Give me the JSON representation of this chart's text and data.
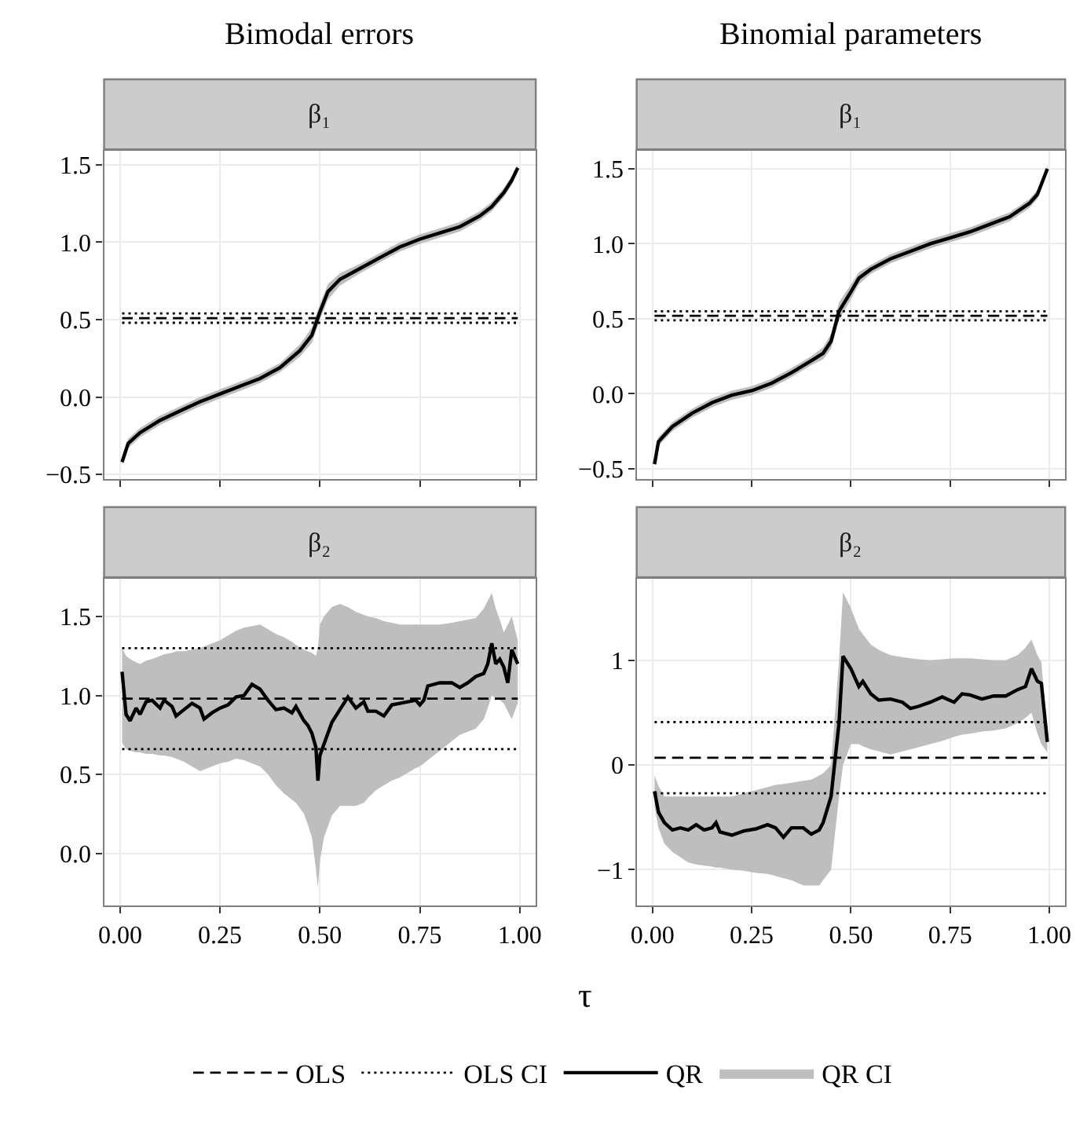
{
  "chart_data": [
    {
      "type": "line",
      "title": "Bimodal errors",
      "subtitle": "β₁",
      "xlim": [
        -0.04,
        1.04
      ],
      "xticks": [
        {
          "value": 0,
          "label": null
        },
        {
          "value": 0.25,
          "label": null
        },
        {
          "value": 0.5,
          "label": null
        },
        {
          "value": 0.75,
          "label": null
        },
        {
          "value": 1,
          "label": null
        }
      ],
      "ylim": [
        -0.53,
        1.59
      ],
      "yticks": [
        {
          "value": -0.5,
          "label": "−0.5"
        },
        {
          "value": 0,
          "label": "0.0"
        },
        0.5,
        {
          "value": 1,
          "label": "1.0"
        },
        1.5
      ],
      "grid": true,
      "tick_labels": "y",
      "legend": "bottom",
      "series": [
        {
          "name": "OLS",
          "color": "#000000",
          "line_style": "dashed",
          "x": [
            0.005,
            0.995
          ],
          "values": [
            0.51,
            0.51
          ]
        },
        {
          "name": "OLS CI",
          "color": "#000000",
          "line_style": "dotted",
          "x": [
            0.005,
            0.995
          ],
          "values": [
            0.48,
            0.48
          ]
        },
        {
          "color": "#000000",
          "line_style": "dotted",
          "x": [
            0.005,
            0.995
          ],
          "values": [
            0.54,
            0.54
          ]
        },
        {
          "name": "QR",
          "color": "#000000",
          "line_style": "solid",
          "x": [
            0.005,
            0.02,
            0.05,
            0.1,
            0.15,
            0.2,
            0.25,
            0.3,
            0.35,
            0.4,
            0.45,
            0.48,
            0.5,
            0.52,
            0.55,
            0.6,
            0.65,
            0.7,
            0.75,
            0.8,
            0.85,
            0.9,
            0.93,
            0.96,
            0.98,
            0.995
          ],
          "values": [
            -0.42,
            -0.3,
            -0.23,
            -0.15,
            -0.09,
            -0.03,
            0.02,
            0.07,
            0.12,
            0.19,
            0.3,
            0.4,
            0.55,
            0.68,
            0.76,
            0.83,
            0.9,
            0.97,
            1.02,
            1.06,
            1.1,
            1.17,
            1.23,
            1.32,
            1.4,
            1.48
          ],
          "lower": [
            -0.44,
            -0.33,
            -0.26,
            -0.18,
            -0.12,
            -0.06,
            -0.01,
            0.04,
            0.09,
            0.16,
            0.26,
            0.35,
            0.5,
            0.63,
            0.72,
            0.8,
            0.87,
            0.94,
            0.99,
            1.03,
            1.07,
            1.14,
            1.2,
            1.29,
            1.37,
            1.46
          ],
          "upper": [
            -0.4,
            -0.27,
            -0.2,
            -0.12,
            -0.06,
            0.0,
            0.05,
            0.1,
            0.15,
            0.22,
            0.34,
            0.45,
            0.6,
            0.73,
            0.8,
            0.86,
            0.93,
            1.0,
            1.05,
            1.09,
            1.13,
            1.2,
            1.26,
            1.35,
            1.43,
            1.5
          ]
        },
        {
          "name": "QR CI",
          "type": "area",
          "color": "#bebebe"
        }
      ]
    },
    {
      "type": "line",
      "title": "Binomial parameters",
      "subtitle": "β₁",
      "xlim": [
        -0.04,
        1.04
      ],
      "xticks": [
        {
          "value": 0,
          "label": null
        },
        {
          "value": 0.25,
          "label": null
        },
        {
          "value": 0.5,
          "label": null
        },
        {
          "value": 0.75,
          "label": null
        },
        {
          "value": 1,
          "label": null
        }
      ],
      "ylim": [
        -0.57,
        1.62
      ],
      "yticks": [
        {
          "value": -0.5,
          "label": "−0.5"
        },
        {
          "value": 0,
          "label": "0.0"
        },
        0.5,
        {
          "value": 1,
          "label": "1.0"
        },
        1.5
      ],
      "grid": true,
      "tick_labels": "y",
      "series": [
        {
          "name": "OLS",
          "color": "#000000",
          "line_style": "dashed",
          "x": [
            0.005,
            0.995
          ],
          "values": [
            0.52,
            0.52
          ]
        },
        {
          "name": "OLS CI",
          "color": "#000000",
          "line_style": "dotted",
          "x": [
            0.005,
            0.995
          ],
          "values": [
            0.49,
            0.49
          ]
        },
        {
          "color": "#000000",
          "line_style": "dotted",
          "x": [
            0.005,
            0.995
          ],
          "values": [
            0.55,
            0.55
          ]
        },
        {
          "name": "QR",
          "color": "#000000",
          "line_style": "solid",
          "x": [
            0.005,
            0.015,
            0.05,
            0.1,
            0.15,
            0.2,
            0.25,
            0.3,
            0.35,
            0.4,
            0.43,
            0.45,
            0.47,
            0.5,
            0.52,
            0.55,
            0.6,
            0.65,
            0.7,
            0.75,
            0.8,
            0.85,
            0.9,
            0.95,
            0.97,
            0.995
          ],
          "values": [
            -0.47,
            -0.32,
            -0.22,
            -0.13,
            -0.06,
            -0.01,
            0.02,
            0.07,
            0.14,
            0.22,
            0.27,
            0.35,
            0.55,
            0.68,
            0.77,
            0.83,
            0.9,
            0.95,
            1.0,
            1.04,
            1.08,
            1.13,
            1.18,
            1.27,
            1.33,
            1.5
          ],
          "lower": [
            -0.49,
            -0.35,
            -0.25,
            -0.16,
            -0.09,
            -0.04,
            -0.01,
            0.04,
            0.11,
            0.19,
            0.23,
            0.3,
            0.49,
            0.63,
            0.73,
            0.8,
            0.87,
            0.92,
            0.97,
            1.01,
            1.05,
            1.1,
            1.15,
            1.24,
            1.3,
            1.48
          ],
          "upper": [
            -0.45,
            -0.29,
            -0.19,
            -0.1,
            -0.03,
            0.02,
            0.05,
            0.1,
            0.17,
            0.25,
            0.31,
            0.4,
            0.61,
            0.73,
            0.81,
            0.86,
            0.93,
            0.98,
            1.03,
            1.07,
            1.11,
            1.16,
            1.21,
            1.3,
            1.36,
            1.52
          ]
        },
        {
          "type": "area",
          "color": "#bebebe"
        }
      ]
    },
    {
      "type": "line",
      "subtitle": "β₂",
      "xlabel": "τ",
      "xlim": [
        -0.04,
        1.04
      ],
      "xticks": [
        {
          "value": 0,
          "label": "0.00"
        },
        {
          "value": 0.25,
          "label": "0.25"
        },
        {
          "value": 0.5,
          "label": "0.50"
        },
        {
          "value": 0.75,
          "label": "0.75"
        },
        {
          "value": 1,
          "label": "1.00"
        }
      ],
      "ylim": [
        -0.33,
        1.74
      ],
      "yticks": [
        {
          "value": 0,
          "label": "0.0"
        },
        0.5,
        {
          "value": 1,
          "label": "1.0"
        },
        1.5
      ],
      "grid": true,
      "series": [
        {
          "name": "OLS",
          "color": "#000000",
          "line_style": "dashed",
          "x": [
            0.005,
            0.995
          ],
          "values": [
            0.98,
            0.98
          ]
        },
        {
          "name": "OLS CI",
          "color": "#000000",
          "line_style": "dotted",
          "x": [
            0.005,
            0.995
          ],
          "values": [
            0.66,
            0.66
          ]
        },
        {
          "color": "#000000",
          "line_style": "dotted",
          "x": [
            0.005,
            0.995
          ],
          "values": [
            1.3,
            1.3
          ]
        },
        {
          "name": "QR",
          "color": "#000000",
          "line_style": "solid",
          "x": [
            0.005,
            0.015,
            0.025,
            0.04,
            0.05,
            0.065,
            0.08,
            0.1,
            0.11,
            0.13,
            0.14,
            0.16,
            0.18,
            0.2,
            0.21,
            0.23,
            0.25,
            0.27,
            0.29,
            0.31,
            0.33,
            0.35,
            0.37,
            0.39,
            0.41,
            0.43,
            0.44,
            0.46,
            0.47,
            0.48,
            0.49,
            0.495,
            0.5,
            0.51,
            0.53,
            0.55,
            0.57,
            0.59,
            0.61,
            0.62,
            0.64,
            0.66,
            0.68,
            0.7,
            0.72,
            0.74,
            0.75,
            0.76,
            0.77,
            0.8,
            0.83,
            0.85,
            0.87,
            0.89,
            0.91,
            0.92,
            0.93,
            0.94,
            0.95,
            0.96,
            0.97,
            0.98,
            0.995
          ],
          "values": [
            1.15,
            0.88,
            0.84,
            0.92,
            0.88,
            0.96,
            0.97,
            0.92,
            0.97,
            0.93,
            0.87,
            0.91,
            0.95,
            0.92,
            0.85,
            0.89,
            0.92,
            0.94,
            0.99,
            1.0,
            1.07,
            1.04,
            0.97,
            0.91,
            0.92,
            0.89,
            0.93,
            0.84,
            0.81,
            0.76,
            0.67,
            0.46,
            0.62,
            0.69,
            0.83,
            0.91,
            0.99,
            0.92,
            0.96,
            0.9,
            0.9,
            0.87,
            0.94,
            0.95,
            0.96,
            0.97,
            0.94,
            0.97,
            1.06,
            1.08,
            1.08,
            1.05,
            1.08,
            1.12,
            1.14,
            1.2,
            1.33,
            1.2,
            1.23,
            1.18,
            1.08,
            1.29,
            1.2
          ],
          "lower": [
            0.7,
            0.66,
            0.65,
            0.64,
            0.64,
            0.63,
            0.63,
            0.62,
            0.62,
            0.61,
            0.6,
            0.58,
            0.55,
            0.52,
            0.53,
            0.55,
            0.57,
            0.58,
            0.6,
            0.59,
            0.57,
            0.55,
            0.5,
            0.43,
            0.38,
            0.34,
            0.32,
            0.25,
            0.18,
            0.1,
            -0.1,
            -0.22,
            -0.05,
            0.1,
            0.24,
            0.3,
            0.3,
            0.3,
            0.32,
            0.35,
            0.4,
            0.43,
            0.46,
            0.48,
            0.51,
            0.54,
            0.55,
            0.57,
            0.59,
            0.65,
            0.71,
            0.75,
            0.77,
            0.79,
            0.85,
            0.92,
            1.0,
            0.98,
            0.97,
            0.95,
            0.9,
            0.85,
            0.95
          ],
          "upper": [
            1.3,
            1.25,
            1.23,
            1.21,
            1.2,
            1.22,
            1.23,
            1.25,
            1.26,
            1.27,
            1.28,
            1.28,
            1.29,
            1.3,
            1.31,
            1.33,
            1.35,
            1.38,
            1.41,
            1.43,
            1.44,
            1.45,
            1.42,
            1.39,
            1.37,
            1.34,
            1.32,
            1.29,
            1.28,
            1.27,
            1.25,
            1.3,
            1.45,
            1.5,
            1.56,
            1.58,
            1.56,
            1.53,
            1.51,
            1.5,
            1.49,
            1.47,
            1.46,
            1.45,
            1.45,
            1.45,
            1.45,
            1.45,
            1.45,
            1.45,
            1.46,
            1.47,
            1.48,
            1.49,
            1.55,
            1.6,
            1.65,
            1.55,
            1.48,
            1.4,
            1.45,
            1.5,
            1.35
          ]
        },
        {
          "type": "area",
          "color": "#bebebe"
        }
      ]
    },
    {
      "type": "line",
      "subtitle": "β₂",
      "xlim": [
        -0.04,
        1.04
      ],
      "xticks": [
        {
          "value": 0,
          "label": "0.00"
        },
        {
          "value": 0.25,
          "label": "0.25"
        },
        {
          "value": 0.5,
          "label": "0.50"
        },
        {
          "value": 0.75,
          "label": "0.75"
        },
        {
          "value": 1,
          "label": "1.00"
        }
      ],
      "ylim": [
        -1.34,
        1.78
      ],
      "yticks": [
        {
          "value": -1,
          "label": "−1"
        },
        0,
        1
      ],
      "grid": true,
      "series": [
        {
          "name": "OLS",
          "color": "#000000",
          "line_style": "dashed",
          "x": [
            0.005,
            0.995
          ],
          "values": [
            0.07,
            0.07
          ]
        },
        {
          "name": "OLS CI",
          "color": "#000000",
          "line_style": "dotted",
          "x": [
            0.005,
            0.995
          ],
          "values": [
            -0.27,
            -0.27
          ]
        },
        {
          "color": "#000000",
          "line_style": "dotted",
          "x": [
            0.005,
            0.995
          ],
          "values": [
            0.41,
            0.41
          ]
        },
        {
          "name": "QR",
          "color": "#000000",
          "line_style": "solid",
          "x": [
            0.005,
            0.015,
            0.03,
            0.05,
            0.07,
            0.09,
            0.11,
            0.13,
            0.15,
            0.16,
            0.17,
            0.2,
            0.23,
            0.26,
            0.29,
            0.31,
            0.33,
            0.35,
            0.38,
            0.4,
            0.42,
            0.43,
            0.45,
            0.47,
            0.48,
            0.5,
            0.52,
            0.53,
            0.55,
            0.57,
            0.6,
            0.63,
            0.65,
            0.67,
            0.7,
            0.73,
            0.76,
            0.78,
            0.8,
            0.83,
            0.86,
            0.89,
            0.92,
            0.94,
            0.955,
            0.97,
            0.98,
            0.995
          ],
          "values": [
            -0.25,
            -0.45,
            -0.55,
            -0.62,
            -0.6,
            -0.62,
            -0.57,
            -0.62,
            -0.6,
            -0.55,
            -0.64,
            -0.67,
            -0.63,
            -0.61,
            -0.57,
            -0.6,
            -0.69,
            -0.6,
            -0.6,
            -0.66,
            -0.62,
            -0.55,
            -0.3,
            0.4,
            1.04,
            0.92,
            0.75,
            0.8,
            0.68,
            0.62,
            0.63,
            0.6,
            0.54,
            0.56,
            0.6,
            0.65,
            0.6,
            0.68,
            0.67,
            0.63,
            0.66,
            0.66,
            0.72,
            0.75,
            0.92,
            0.8,
            0.78,
            0.22
          ],
          "lower": [
            -0.4,
            -0.6,
            -0.75,
            -0.83,
            -0.88,
            -0.93,
            -0.95,
            -0.96,
            -0.97,
            -0.98,
            -0.98,
            -1.0,
            -1.01,
            -1.03,
            -1.04,
            -1.06,
            -1.08,
            -1.1,
            -1.15,
            -1.15,
            -1.15,
            -1.1,
            -1.0,
            -0.3,
            0.0,
            0.2,
            0.2,
            0.18,
            0.15,
            0.13,
            0.1,
            0.13,
            0.15,
            0.17,
            0.2,
            0.23,
            0.27,
            0.29,
            0.3,
            0.32,
            0.33,
            0.35,
            0.4,
            0.45,
            0.5,
            0.3,
            0.2,
            0.12
          ],
          "upper": [
            -0.1,
            -0.2,
            -0.3,
            -0.3,
            -0.3,
            -0.3,
            -0.3,
            -0.3,
            -0.3,
            -0.3,
            -0.3,
            -0.3,
            -0.27,
            -0.24,
            -0.21,
            -0.19,
            -0.18,
            -0.17,
            -0.15,
            -0.14,
            -0.1,
            -0.08,
            0.0,
            1.0,
            1.65,
            1.5,
            1.3,
            1.25,
            1.15,
            1.1,
            1.05,
            1.03,
            1.02,
            1.01,
            1.0,
            1.01,
            1.02,
            1.02,
            1.02,
            1.01,
            1.0,
            1.0,
            1.05,
            1.12,
            1.2,
            1.05,
            0.98,
            0.3
          ]
        },
        {
          "type": "area",
          "color": "#bebebe"
        }
      ]
    }
  ]
}
